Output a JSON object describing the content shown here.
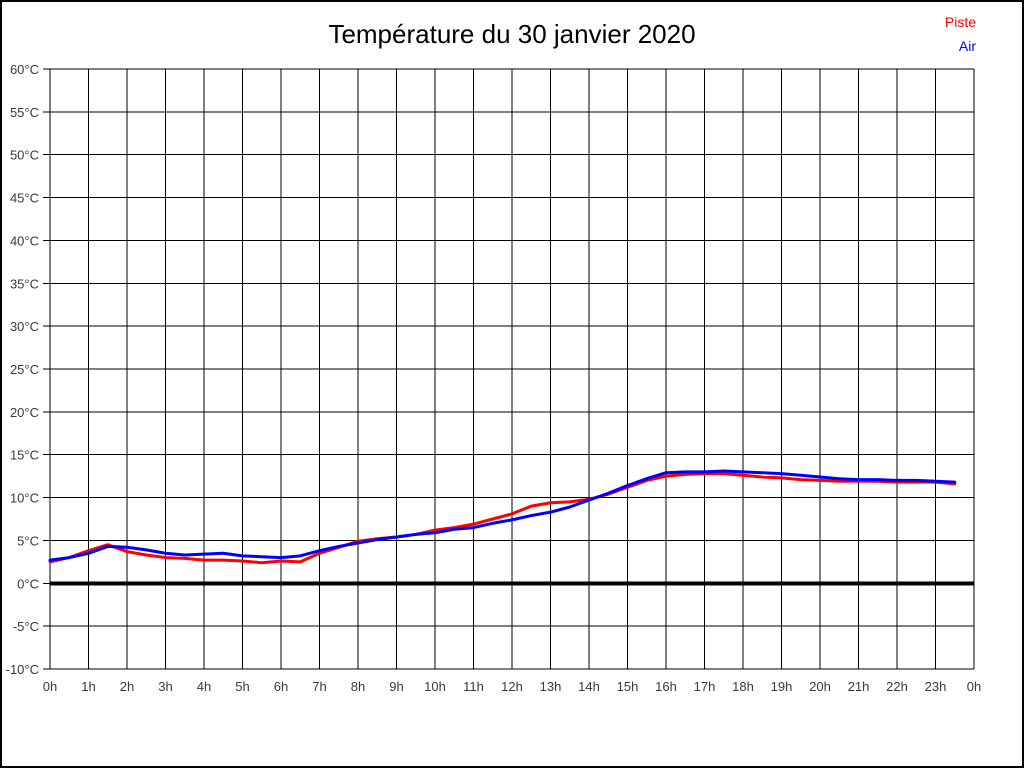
{
  "page": {
    "background": "#ffffff",
    "border_color": "#000000"
  },
  "header": {
    "title": "Température du 30 janvier 2020"
  },
  "legend": {
    "position": "top-right",
    "items": [
      {
        "label": "Piste",
        "color": "#ff0000"
      },
      {
        "label": "Air",
        "color": "#0000ff"
      }
    ]
  },
  "chart_data": {
    "type": "line",
    "title": "Température du 30 janvier 2020",
    "xlabel": "",
    "ylabel": "",
    "xlim": [
      0,
      24
    ],
    "ylim": [
      -10,
      60
    ],
    "grid": true,
    "grid_color": "#000000",
    "axis_text_color": "#3a3a3a",
    "x_tick_values": [
      0,
      1,
      2,
      3,
      4,
      5,
      6,
      7,
      8,
      9,
      10,
      11,
      12,
      13,
      14,
      15,
      16,
      17,
      18,
      19,
      20,
      21,
      22,
      23,
      24
    ],
    "x_tick_labels": [
      "0h",
      "1h",
      "2h",
      "3h",
      "4h",
      "5h",
      "6h",
      "7h",
      "8h",
      "9h",
      "10h",
      "11h",
      "12h",
      "13h",
      "14h",
      "15h",
      "16h",
      "17h",
      "18h",
      "19h",
      "20h",
      "21h",
      "22h",
      "23h",
      "0h"
    ],
    "y_tick_values": [
      60,
      55,
      50,
      45,
      40,
      35,
      30,
      25,
      20,
      15,
      10,
      5,
      0,
      -5,
      -10
    ],
    "y_tick_labels": [
      "60°C",
      "55°C",
      "50°C",
      "45°C",
      "40°C",
      "35°C",
      "30°C",
      "25°C",
      "20°C",
      "15°C",
      "10°C",
      "5°C",
      "0°C",
      "-5°C",
      "-10°C"
    ],
    "zero_line": {
      "value": 0,
      "color": "#000000",
      "width": 4
    },
    "series": [
      {
        "name": "Piste",
        "color": "#ff0000",
        "x_start": 0,
        "x_step": 0.5,
        "values": [
          2.5,
          3.0,
          3.8,
          4.5,
          3.7,
          3.3,
          3.0,
          2.9,
          2.7,
          2.7,
          2.6,
          2.4,
          2.6,
          2.5,
          3.5,
          4.2,
          4.9,
          5.2,
          5.4,
          5.7,
          6.2,
          6.5,
          6.9,
          7.5,
          8.1,
          9.0,
          9.4,
          9.5,
          9.8,
          10.4,
          11.2,
          12.0,
          12.5,
          12.7,
          12.8,
          12.8,
          12.6,
          12.4,
          12.3,
          12.1,
          12.0,
          11.9,
          11.9,
          11.9,
          11.8,
          11.8,
          11.8,
          11.6
        ]
      },
      {
        "name": "Air",
        "color": "#0000ff",
        "x_start": 0,
        "x_step": 0.5,
        "values": [
          2.7,
          3.0,
          3.5,
          4.3,
          4.2,
          3.9,
          3.5,
          3.3,
          3.4,
          3.5,
          3.2,
          3.1,
          3.0,
          3.2,
          3.8,
          4.3,
          4.7,
          5.1,
          5.4,
          5.7,
          5.9,
          6.3,
          6.5,
          7.0,
          7.4,
          7.9,
          8.3,
          8.9,
          9.7,
          10.5,
          11.4,
          12.2,
          12.9,
          13.0,
          13.0,
          13.1,
          13.0,
          12.9,
          12.8,
          12.6,
          12.4,
          12.2,
          12.1,
          12.1,
          12.0,
          12.0,
          11.9,
          11.8
        ]
      }
    ],
    "legend_position": "top-right"
  }
}
